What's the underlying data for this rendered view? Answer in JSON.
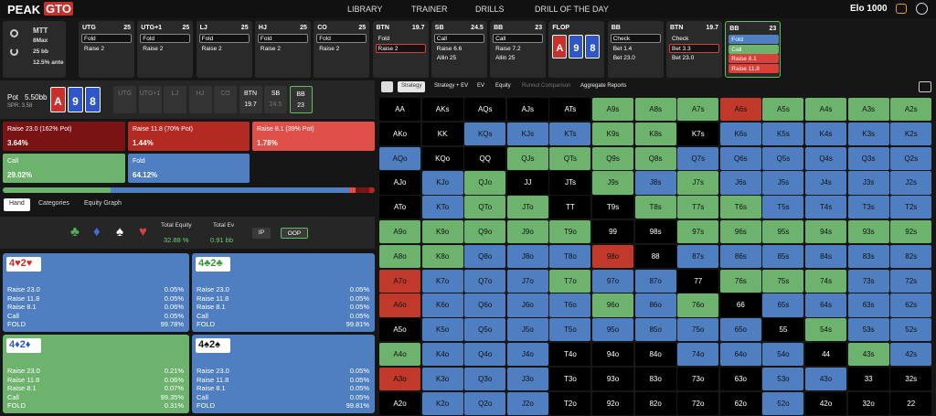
{
  "nav": {
    "logo_a": "PEAK",
    "logo_b": "GTO",
    "items": [
      "LIBRARY",
      "TRAINER",
      "DRILLS",
      "DRILL OF THE DAY"
    ],
    "elo": "Elo 1000"
  },
  "game": {
    "lines": [
      "MTT",
      "8Max",
      "25 bb",
      "12.5% ante"
    ]
  },
  "actions": [
    {
      "pos": "UTG",
      "stack": 25,
      "options": [
        "Fold",
        "Raise 2"
      ],
      "selected": 0
    },
    {
      "pos": "UTG+1",
      "stack": 25,
      "options": [
        "Fold",
        "Raise 2"
      ],
      "selected": 0
    },
    {
      "pos": "LJ",
      "stack": 25,
      "options": [
        "Fold",
        "Raise 2"
      ],
      "selected": 0
    },
    {
      "pos": "HJ",
      "stack": 25,
      "options": [
        "Fold",
        "Raise 2"
      ],
      "selected": 0
    },
    {
      "pos": "CO",
      "stack": 25,
      "options": [
        "Fold",
        "Raise 2"
      ],
      "selected": 0
    },
    {
      "pos": "BTN",
      "stack": 19.7,
      "options": [
        "Fold",
        "Raise 2"
      ],
      "selected": 1
    },
    {
      "pos": "SB",
      "stack": 24.5,
      "options": [
        "Call",
        "Raise 6.6",
        "Allin 25"
      ],
      "selected": 0
    },
    {
      "pos": "BB",
      "stack": 23,
      "options": [
        "Call",
        "Raise 7.2",
        "Allin 25"
      ],
      "selected": 0
    },
    {
      "pos": "FLOP",
      "cards": [
        {
          "rank": "A",
          "color": "#c8302c"
        },
        {
          "rank": "9",
          "color": "#2f56c8"
        },
        {
          "rank": "8",
          "color": "#2f56c8"
        }
      ]
    },
    {
      "pos": "BB",
      "options": [
        "Check",
        "Bet 1.4",
        "Bet 23.0"
      ],
      "selected": 0
    },
    {
      "pos": "BTN",
      "stack": 19.7,
      "options": [
        "Check",
        "Bet 3.3",
        "Bet 23.0"
      ],
      "selected": 1
    },
    {
      "pos": "BB",
      "stack": 23,
      "options": [
        "Fold",
        "Call",
        "Raise 8.1",
        "Raise 11.8"
      ],
      "option_colors": [
        "#4f7fc1",
        "#6db36d",
        "#d9403a",
        "#d9403a"
      ],
      "active": true
    }
  ],
  "pot": {
    "label": "Pot",
    "value": "5.50bb",
    "spr": "SPR: 3.58",
    "cards": [
      {
        "rank": "A",
        "color": "#c8302c"
      },
      {
        "rank": "9",
        "color": "#2f56c8"
      },
      {
        "rank": "8",
        "color": "#2f56c8"
      }
    ],
    "positions": [
      {
        "name": "UTG"
      },
      {
        "name": "UTG+1"
      },
      {
        "name": "LJ"
      },
      {
        "name": "HJ"
      },
      {
        "name": "CO"
      },
      {
        "name": "BTN",
        "stack": 19.7
      },
      {
        "name": "SB",
        "stack": 24.5
      },
      {
        "name": "BB",
        "stack": 23
      }
    ],
    "active": 7
  },
  "strategy": [
    {
      "label": "Raise 23.0 (162% Pot)",
      "value": 3.64,
      "value_label": "3.64%",
      "color": "#7a1414"
    },
    {
      "label": "Raise 11.8 (70% Pot)",
      "value": 1.44,
      "value_label": "1.44%",
      "color": "#b32a22"
    },
    {
      "label": "Raise 8.1 (39% Pot)",
      "value": 1.78,
      "value_label": "1.78%",
      "color": "#e0504a"
    },
    {
      "label": "Call",
      "value": 29.02,
      "value_label": "29.02%",
      "color": "#6db36d"
    },
    {
      "label": "Fold",
      "value": 64.12,
      "value_label": "64.12%",
      "color": "#4f7fc1"
    }
  ],
  "tabs": [
    "Hand",
    "Categories",
    "Equity Graph"
  ],
  "suits": [
    {
      "s": "♣",
      "color": "#4caf50"
    },
    {
      "s": "♦",
      "color": "#3f6ee0"
    },
    {
      "s": "♠",
      "color": "#ffffff"
    },
    {
      "s": "♥",
      "color": "#d9403a"
    }
  ],
  "equity": {
    "label": "Total Equity",
    "value": "32.88 %"
  },
  "ev": {
    "label": "Total Ev",
    "value": "0.91 bb"
  },
  "toggle": [
    "IP",
    "OOP"
  ],
  "hands": [
    {
      "title": "4♥2♥",
      "title_color": "#c8302c",
      "bg": "#4f7fc1",
      "rows": [
        [
          "Raise 23.0",
          "0.05%"
        ],
        [
          "Raise 11.8",
          "0.05%"
        ],
        [
          "Raise 8.1",
          "0.06%"
        ],
        [
          "Call",
          "0.05%"
        ],
        [
          "FOLD",
          "99.78%"
        ]
      ]
    },
    {
      "title": "4♣2♣",
      "title_color": "#3a9a3a",
      "bg": "#4f7fc1",
      "rows": [
        [
          "Raise 23.0",
          "0.05%"
        ],
        [
          "Raise 11.8",
          "0.05%"
        ],
        [
          "Raise 8.1",
          "0.05%"
        ],
        [
          "Call",
          "0.05%"
        ],
        [
          "FOLD",
          "99.81%"
        ]
      ]
    },
    {
      "title": "4♦2♦",
      "title_color": "#2f56c8",
      "bg": "#6db36d",
      "rows": [
        [
          "Raise 23.0",
          "0.21%"
        ],
        [
          "Raise 11.8",
          "0.06%"
        ],
        [
          "Raise 8.1",
          "0.07%"
        ],
        [
          "Call",
          "99.35%"
        ],
        [
          "FOLD",
          "0.31%"
        ]
      ]
    },
    {
      "title": "4♠2♠",
      "title_color": "#111111",
      "bg": "#4f7fc1",
      "rows": [
        [
          "Raise 23.0",
          "0.05%"
        ],
        [
          "Raise 11.8",
          "0.05%"
        ],
        [
          "Raise 8.1",
          "0.05%"
        ],
        [
          "Call",
          "0.05%"
        ],
        [
          "FOLD",
          "99.81%"
        ]
      ]
    }
  ],
  "grid": {
    "tabs": [
      "Strategy",
      "Strategy + EV",
      "EV",
      "Equity",
      "Runout Comparison",
      "Aggregate Reports"
    ],
    "rows": [
      [
        "AA",
        "AKs",
        "AQs",
        "AJs",
        "ATs",
        "A9s",
        "A8s",
        "A7s",
        "A6s",
        "A5s",
        "A4s",
        "A3s",
        "A2s"
      ],
      [
        "AKo",
        "KK",
        "KQs",
        "KJs",
        "KTs",
        "K9s",
        "K8s",
        "K7s",
        "K6s",
        "K5s",
        "K4s",
        "K3s",
        "K2s"
      ],
      [
        "AQo",
        "KQo",
        "QQ",
        "QJs",
        "QTs",
        "Q9s",
        "Q8s",
        "Q7s",
        "Q6s",
        "Q5s",
        "Q4s",
        "Q3s",
        "Q2s"
      ],
      [
        "AJo",
        "KJo",
        "QJo",
        "JJ",
        "JTs",
        "J9s",
        "J8s",
        "J7s",
        "J6s",
        "J5s",
        "J4s",
        "J3s",
        "J2s"
      ],
      [
        "ATo",
        "KTo",
        "QTo",
        "JTo",
        "TT",
        "T9s",
        "T8s",
        "T7s",
        "T6s",
        "T5s",
        "T4s",
        "T3s",
        "T2s"
      ],
      [
        "A9o",
        "K9o",
        "Q9o",
        "J9o",
        "T9o",
        "99",
        "98s",
        "97s",
        "96s",
        "95s",
        "94s",
        "93s",
        "92s"
      ],
      [
        "A8o",
        "K8o",
        "Q8o",
        "J8o",
        "T8o",
        "98o",
        "88",
        "87s",
        "86s",
        "85s",
        "84s",
        "83s",
        "82s"
      ],
      [
        "A7o",
        "K7o",
        "Q7o",
        "J7o",
        "T7o",
        "97o",
        "87o",
        "77",
        "76s",
        "75s",
        "74s",
        "73s",
        "72s"
      ],
      [
        "A6o",
        "K6o",
        "Q6o",
        "J6o",
        "T6o",
        "96o",
        "86o",
        "76o",
        "66",
        "65s",
        "64s",
        "63s",
        "62s"
      ],
      [
        "A5o",
        "K5o",
        "Q5o",
        "J5o",
        "T5o",
        "95o",
        "85o",
        "75o",
        "65o",
        "55",
        "54s",
        "53s",
        "52s"
      ],
      [
        "A4o",
        "K4o",
        "Q4o",
        "J4o",
        "T4o",
        "94o",
        "84o",
        "74o",
        "64o",
        "54o",
        "44",
        "43s",
        "42s"
      ],
      [
        "A3o",
        "K3o",
        "Q3o",
        "J3o",
        "T3o",
        "93o",
        "83o",
        "73o",
        "63o",
        "53o",
        "43o",
        "33",
        "32s"
      ],
      [
        "A2o",
        "K2o",
        "Q2o",
        "J2o",
        "T2o",
        "92o",
        "82o",
        "72o",
        "62o",
        "52o",
        "42o",
        "32o",
        "22"
      ]
    ],
    "colors": [
      [
        "#000",
        "#000",
        "#000",
        "#000",
        "#000",
        "#6db36d",
        "#6db36d",
        "#6db36d",
        "#c0392b",
        "#6db36d",
        "#6db36d",
        "#6db36d",
        "#6db36d"
      ],
      [
        "#000",
        "#000",
        "#4f7fc1",
        "#4f7fc1",
        "#4f7fc1",
        "#6db36d",
        "#6db36d",
        "#000",
        "#4f7fc1",
        "#4f7fc1",
        "#4f7fc1",
        "#4f7fc1",
        "#4f7fc1"
      ],
      [
        "#4f7fc1",
        "#000",
        "#000",
        "#6db36d",
        "#6db36d",
        "#6db36d",
        "#6db36d",
        "#4f7fc1",
        "#4f7fc1",
        "#4f7fc1",
        "#4f7fc1",
        "#4f7fc1",
        "#4f7fc1"
      ],
      [
        "#000",
        "#4f7fc1",
        "#6db36d",
        "#000",
        "#000",
        "#6db36d",
        "#4f7fc1",
        "#6db36d",
        "#4f7fc1",
        "#4f7fc1",
        "#4f7fc1",
        "#4f7fc1",
        "#4f7fc1"
      ],
      [
        "#000",
        "#4f7fc1",
        "#6db36d",
        "#6db36d",
        "#000",
        "#000",
        "#6db36d",
        "#6db36d",
        "#6db36d",
        "#4f7fc1",
        "#4f7fc1",
        "#4f7fc1",
        "#4f7fc1"
      ],
      [
        "#6db36d",
        "#6db36d",
        "#6db36d",
        "#6db36d",
        "#6db36d",
        "#000",
        "#000",
        "#6db36d",
        "#6db36d",
        "#6db36d",
        "#6db36d",
        "#6db36d",
        "#6db36d"
      ],
      [
        "#6db36d",
        "#6db36d",
        "#4f7fc1",
        "#4f7fc1",
        "#4f7fc1",
        "#c0392b",
        "#000",
        "#4f7fc1",
        "#4f7fc1",
        "#4f7fc1",
        "#4f7fc1",
        "#4f7fc1",
        "#4f7fc1"
      ],
      [
        "#c0392b",
        "#4f7fc1",
        "#4f7fc1",
        "#4f7fc1",
        "#6db36d",
        "#4f7fc1",
        "#4f7fc1",
        "#000",
        "#6db36d",
        "#6db36d",
        "#6db36d",
        "#4f7fc1",
        "#4f7fc1"
      ],
      [
        "#c0392b",
        "#4f7fc1",
        "#4f7fc1",
        "#4f7fc1",
        "#4f7fc1",
        "#6db36d",
        "#4f7fc1",
        "#6db36d",
        "#000",
        "#4f7fc1",
        "#4f7fc1",
        "#4f7fc1",
        "#4f7fc1"
      ],
      [
        "#000",
        "#4f7fc1",
        "#4f7fc1",
        "#4f7fc1",
        "#4f7fc1",
        "#4f7fc1",
        "#4f7fc1",
        "#4f7fc1",
        "#4f7fc1",
        "#000",
        "#6db36d",
        "#4f7fc1",
        "#4f7fc1"
      ],
      [
        "#6db36d",
        "#4f7fc1",
        "#4f7fc1",
        "#4f7fc1",
        "#000",
        "#000",
        "#000",
        "#4f7fc1",
        "#4f7fc1",
        "#4f7fc1",
        "#000",
        "#6db36d",
        "#4f7fc1"
      ],
      [
        "#c0392b",
        "#4f7fc1",
        "#4f7fc1",
        "#4f7fc1",
        "#000",
        "#000",
        "#000",
        "#000",
        "#000",
        "#4f7fc1",
        "#4f7fc1",
        "#000",
        "#000"
      ],
      [
        "#000",
        "#4f7fc1",
        "#4f7fc1",
        "#4f7fc1",
        "#000",
        "#000",
        "#000",
        "#000",
        "#000",
        "#4f7fc1",
        "#000",
        "#000",
        "#000"
      ]
    ]
  }
}
